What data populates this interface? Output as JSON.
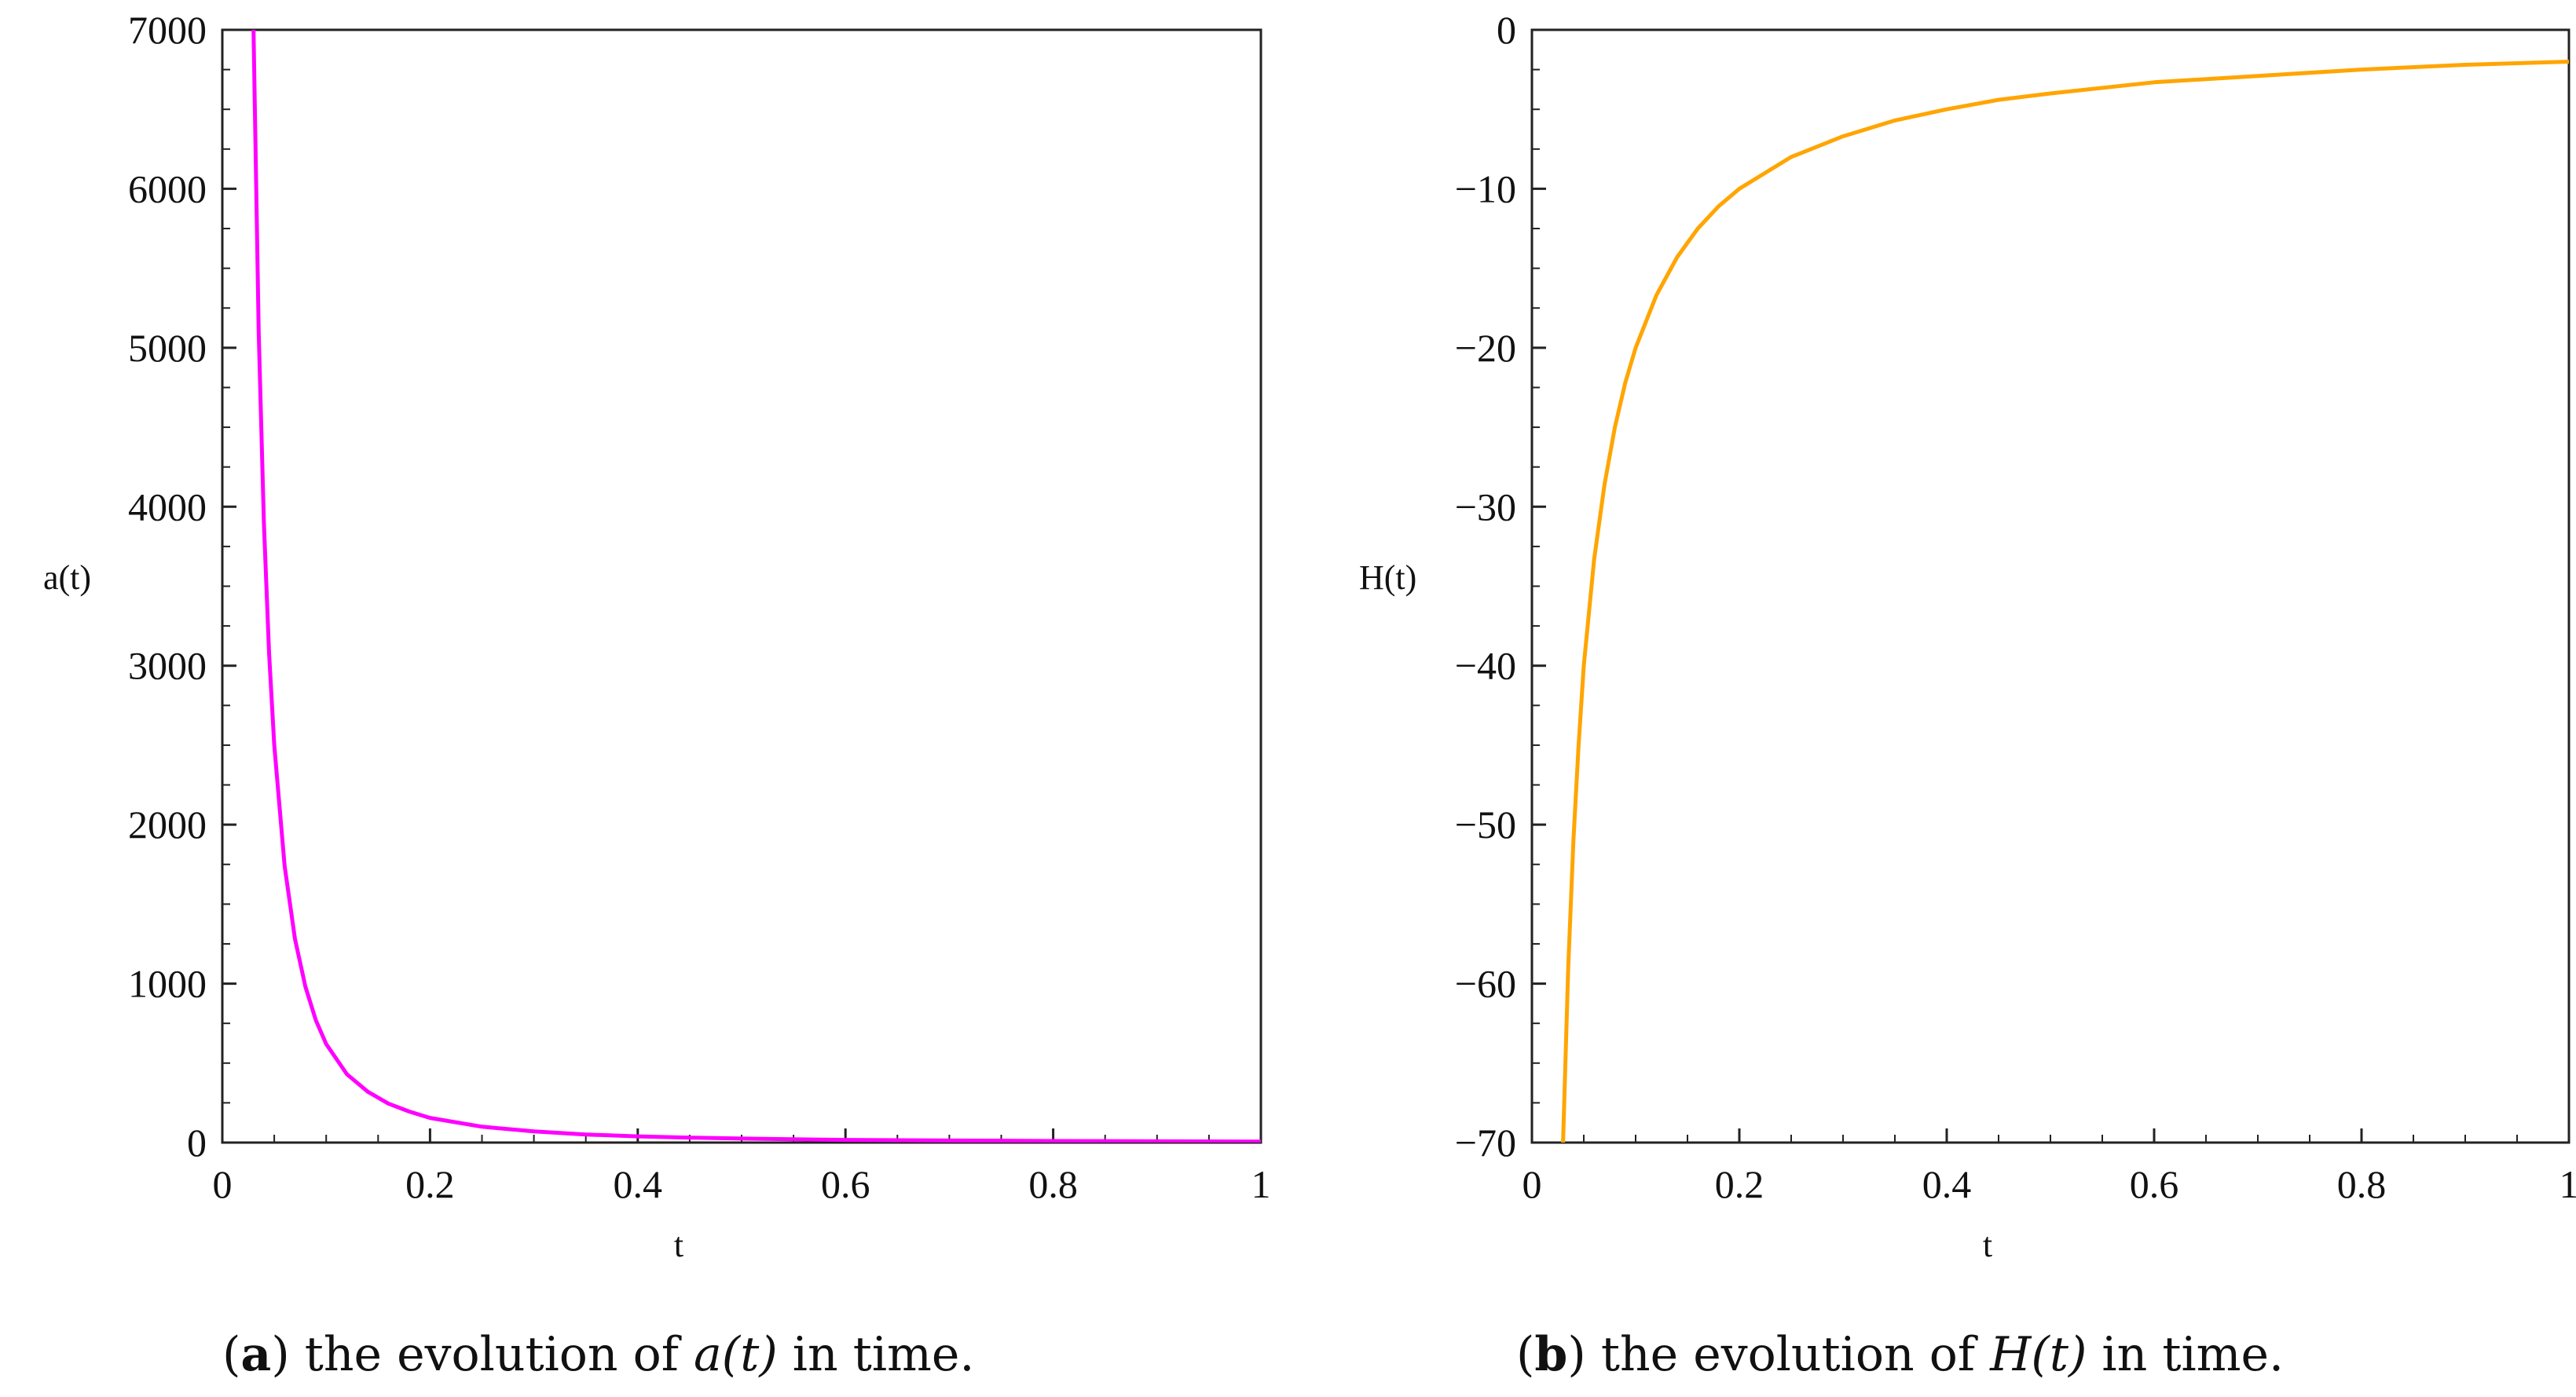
{
  "chart_data": [
    {
      "type": "line",
      "panel": "a",
      "caption": {
        "label": "a",
        "text": "the evolution of ",
        "math": "a(t)",
        "suffix": " in time."
      },
      "xlabel": "t",
      "ylabel": "a(t)",
      "xlim": [
        0,
        1
      ],
      "ylim": [
        0,
        7000
      ],
      "xticks": [
        "0",
        "0.2",
        "0.4",
        "0.6",
        "0.8",
        "1"
      ],
      "yticks": [
        "0",
        "1000",
        "2000",
        "3000",
        "4000",
        "5000",
        "6000",
        "7000"
      ],
      "grid": false,
      "line_color": "#ff00ff",
      "series": [
        {
          "x": [
            0.03,
            0.035,
            0.04,
            0.045,
            0.05,
            0.06,
            0.07,
            0.08,
            0.09,
            0.1,
            0.12,
            0.14,
            0.16,
            0.18,
            0.2,
            0.25,
            0.3,
            0.35,
            0.4,
            0.45,
            0.5,
            0.6,
            0.7,
            0.8,
            0.9,
            1.0
          ],
          "y": [
            7000,
            5100,
            3900,
            3080,
            2500,
            1740,
            1280,
            980,
            770,
            620,
            430,
            320,
            245,
            195,
            155,
            100,
            70,
            51,
            39,
            31,
            25,
            17,
            13,
            10,
            8,
            6
          ]
        }
      ]
    },
    {
      "type": "line",
      "panel": "b",
      "caption": {
        "label": "b",
        "text": "the evolution of ",
        "math": "H(t)",
        "suffix": " in time."
      },
      "xlabel": "t",
      "ylabel": "H(t)",
      "xlim": [
        0,
        1
      ],
      "ylim": [
        -70,
        0
      ],
      "xticks": [
        "0",
        "0.2",
        "0.4",
        "0.6",
        "0.8",
        "1"
      ],
      "yticks": [
        "0",
        "−10",
        "−20",
        "−30",
        "−40",
        "−50",
        "−60",
        "−70"
      ],
      "grid": false,
      "line_color": "#ffa500",
      "series": [
        {
          "x": [
            0.03,
            0.035,
            0.04,
            0.045,
            0.05,
            0.06,
            0.07,
            0.08,
            0.09,
            0.1,
            0.12,
            0.14,
            0.16,
            0.18,
            0.2,
            0.25,
            0.3,
            0.35,
            0.4,
            0.45,
            0.5,
            0.6,
            0.7,
            0.8,
            0.9,
            1.0
          ],
          "y": [
            -70,
            -59,
            -51,
            -45,
            -40,
            -33.3,
            -28.6,
            -25,
            -22.2,
            -20,
            -16.7,
            -14.3,
            -12.5,
            -11.1,
            -10,
            -8,
            -6.7,
            -5.7,
            -5,
            -4.4,
            -4,
            -3.3,
            -2.9,
            -2.5,
            -2.2,
            -2
          ]
        }
      ]
    }
  ]
}
